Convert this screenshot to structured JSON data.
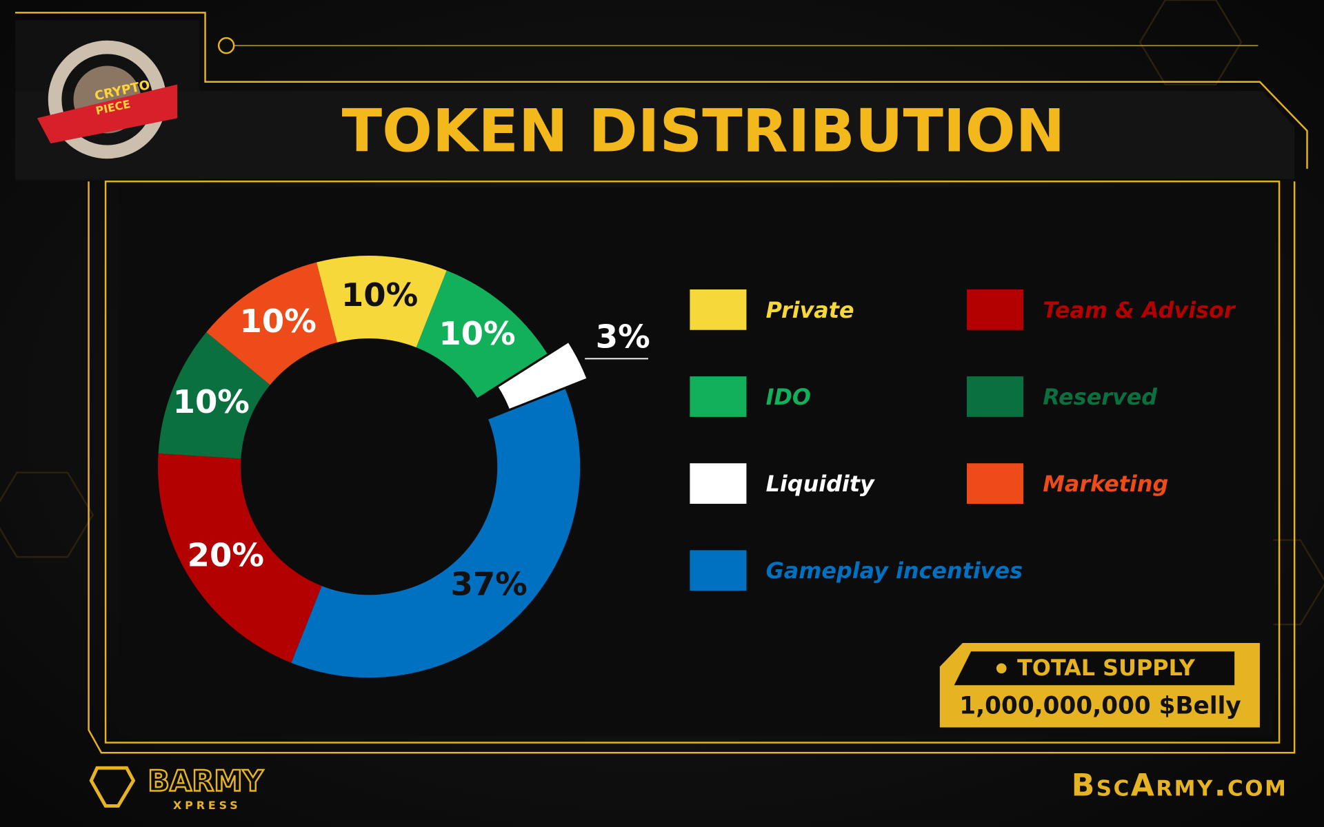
{
  "chart_data": {
    "type": "donut",
    "title": "TOKEN DISTRIBUTION",
    "categories": [
      "Private",
      "IDO",
      "Liquidity",
      "Gameplay incentives",
      "Team & Advisor",
      "Reserved",
      "Marketing"
    ],
    "values": [
      10,
      10,
      3,
      37,
      20,
      10,
      10
    ],
    "value_labels": [
      "10%",
      "10%",
      "3%",
      "37%",
      "20%",
      "10%",
      "10%"
    ],
    "colors": [
      "#f6d83a",
      "#12b05a",
      "#ffffff",
      "#0070c0",
      "#b30000",
      "#0a7040",
      "#ee4b1a"
    ],
    "label_colors": [
      "#111111",
      "#ffffff",
      "#ffffff",
      "#111111",
      "#ffffff",
      "#ffffff",
      "#ffffff"
    ],
    "exploded": [
      2
    ]
  },
  "logo": {
    "line1": "CRYPTO",
    "line2": "PIECE"
  },
  "supply": {
    "label": "TOTAL SUPPLY",
    "amount": "1,000,000,000 $Belly"
  },
  "footer": {
    "brand": "BARMY",
    "sub": "XPRESS",
    "site": "BscArmy.com"
  }
}
